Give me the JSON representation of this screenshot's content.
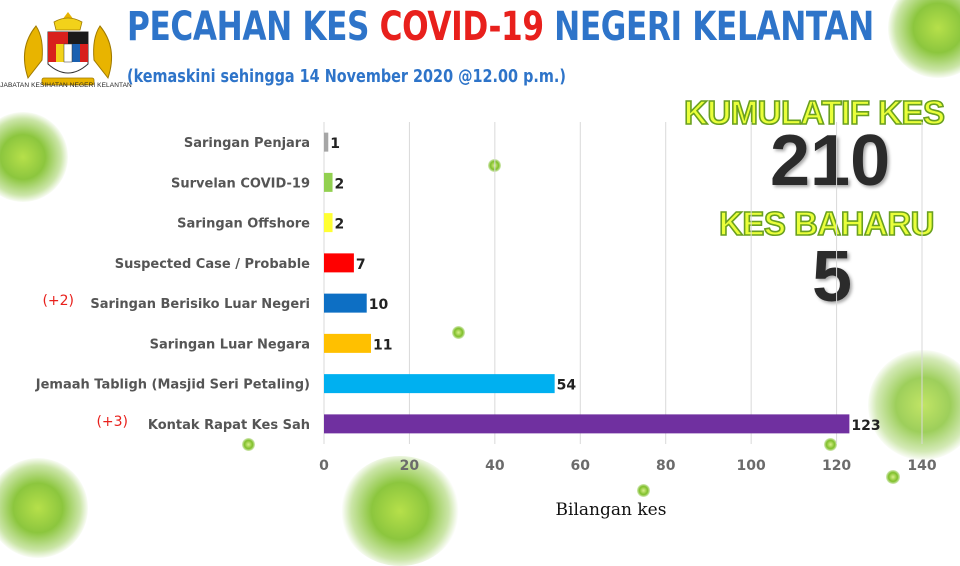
{
  "header": {
    "title_part1": "PECAHAN KES ",
    "title_part2": "COVID-19",
    "title_part3": " NEGERI KELANTAN",
    "subtitle": "(kemaskini sehingga 14 November 2020 @12.00 p.m.)",
    "logo_caption": "JABATAN KESIHATAN NEGERI KELANTAN"
  },
  "stats": {
    "cumulative_label": "KUMULATIF KES",
    "cumulative_value": "210",
    "new_label": "KES BAHARU",
    "new_value": "5"
  },
  "colors": {
    "title_blue": "#2e74c9",
    "title_red": "#e8201c",
    "stat_label_fill": "#eaff3a",
    "stat_label_outline": "#6aa020"
  },
  "chart_data": {
    "type": "bar",
    "orientation": "horizontal",
    "categories": [
      "Saringan Penjara",
      "Survelan COVID-19",
      "Saringan Offshore",
      "Suspected Case / Probable",
      "Saringan Berisiko Luar Negeri",
      "Saringan Luar Negara",
      "Jemaah Tabligh (Masjid Seri Petaling)",
      "Kontak Rapat Kes Sah"
    ],
    "values": [
      1,
      2,
      2,
      7,
      10,
      11,
      54,
      123
    ],
    "colors": [
      "#a6a6a6",
      "#92d050",
      "#ffff33",
      "#ff0000",
      "#0d6fc4",
      "#ffc000",
      "#00b0f0",
      "#7030a0"
    ],
    "notes": [
      "",
      "",
      "",
      "",
      "(+2)",
      "",
      "",
      "(+3)"
    ],
    "xlabel": "Bilangan kes",
    "ylabel": "",
    "xlim": [
      0,
      140
    ],
    "xticks": [
      0,
      20,
      40,
      60,
      80,
      100,
      120,
      140
    ],
    "grid": "vertical"
  }
}
